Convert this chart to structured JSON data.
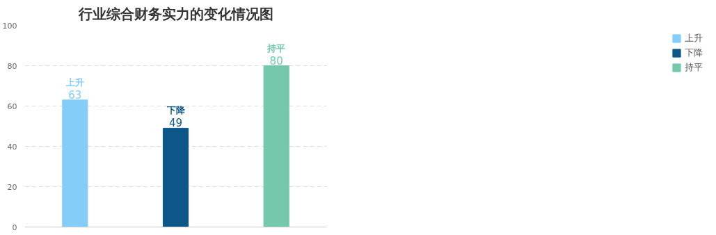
{
  "chart_data": {
    "type": "bar",
    "title": "行业综合财务实力的变化情况图",
    "categories": [
      null,
      null,
      null
    ],
    "series": [
      {
        "name": "上升",
        "color": "#84cdf8",
        "values": [
          63,
          null,
          null
        ]
      },
      {
        "name": "下降",
        "color": "#0d5688",
        "values": [
          null,
          49,
          null
        ]
      },
      {
        "name": "持平",
        "color": "#76c8ac",
        "values": [
          null,
          null,
          80
        ]
      }
    ],
    "ylim": [
      0,
      100
    ],
    "yticks": [
      0,
      20,
      40,
      60,
      80,
      100
    ],
    "grid": "y",
    "legend": "right",
    "data_labels": true
  }
}
